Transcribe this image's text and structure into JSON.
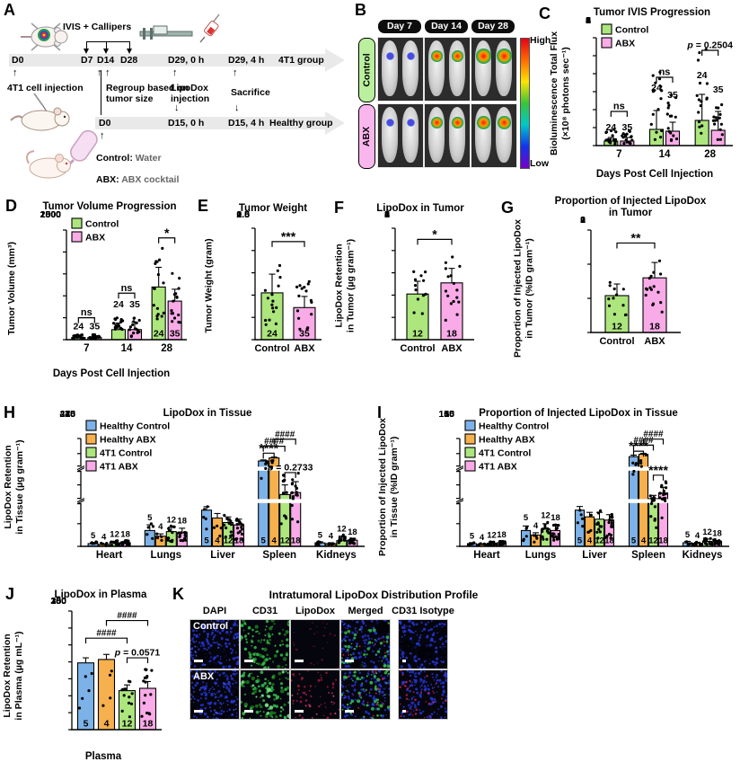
{
  "glyphs": {
    "up": "↑",
    "down": "↓"
  },
  "colors": {
    "green": "#ace67d",
    "pink": "#f8abe7",
    "blue": "#7db2e8",
    "orange": "#f6b04e"
  },
  "panelA": {
    "label": "A",
    "ivis_callipers": "IVIS + Callipers",
    "row1": {
      "d0": "D0",
      "d7": "D7",
      "d14": "D14",
      "d28": "D28",
      "t0": "D29, 0 h",
      "t4": "D29, 4 h",
      "group": "4T1 group"
    },
    "cell_injection": "4T1 cell injection",
    "regroup": "Regroup based on\ntumor size",
    "lipodox": "LipoDox\ninjection",
    "sacrifice": "Sacrifice",
    "row2": {
      "d0": "D0",
      "t0": "D15, 0 h",
      "t4": "D15, 4 h",
      "group": "Healthy group"
    },
    "control_key": "Control:",
    "control_val": " Water",
    "abx_key": "ABX:",
    "abx_val": " ABX cocktail"
  },
  "panelB": {
    "label": "B",
    "days": [
      "Day 7",
      "Day 14",
      "Day 28"
    ],
    "rows": [
      "Control",
      "ABX"
    ],
    "row_colors": [
      "#baef9d",
      "#f9b6ec"
    ],
    "scale_high": "High",
    "scale_low": "Low"
  },
  "panelK": {
    "label": "K",
    "title": "Intratumoral LipoDox Distribution Profile",
    "cols": [
      "DAPI",
      "CD31",
      "LipoDox",
      "Merged",
      "CD31 Isotype"
    ],
    "rows": [
      "Control",
      "ABX"
    ]
  },
  "charts": {
    "C": {
      "label": "C",
      "type": "bar",
      "title": "Tumor IVIS Progression",
      "ylabel": "Bioluminescence Total Flux\n(×10⁸ photons sec⁻¹)",
      "xlabel": "Days Post Cell Injection",
      "categories": [
        "7",
        "14",
        "28"
      ],
      "ymax": 6,
      "yticks": [
        "0",
        "1",
        "2",
        "3",
        "4",
        "5",
        "6"
      ],
      "legend": true,
      "series": [
        {
          "name": "Control",
          "color": "green",
          "values": [
            0.25,
            0.9,
            1.4
          ],
          "err": [
            0.45,
            1.95,
            2.85
          ],
          "dot_hi": [
            0.95,
            4.4,
            5.9
          ],
          "n": "24"
        },
        {
          "name": "ABX",
          "color": "pink",
          "values": [
            0.25,
            0.8,
            0.85
          ],
          "err": [
            0.45,
            1.3,
            1.9
          ],
          "dot_hi": [
            0.9,
            2.8,
            2.3
          ],
          "n": "35"
        }
      ],
      "n_y": [
        [
          1.0,
          3.2,
          3.9
        ],
        [
          1.0,
          2.8,
          3.1
        ]
      ],
      "sig": [
        {
          "cat": 0,
          "s1": 0,
          "s2": 1,
          "label": "ns",
          "y": 1.9
        },
        {
          "cat": 1,
          "s1": 0,
          "s2": 1,
          "label": "ns",
          "y": 3.8
        },
        {
          "cat": 2,
          "s1": 0,
          "s2": 1,
          "label": "p = 0.2504",
          "y": 5.3
        }
      ]
    },
    "D": {
      "label": "D",
      "type": "bar",
      "title": "Tumor Volume Progression",
      "ylabel": "Tumor Volume (mm³)",
      "xlabel": "Days Post Cell Injection",
      "categories": [
        "7",
        "14",
        "28"
      ],
      "ymax": 2500,
      "yticks": [
        "0",
        "500",
        "1000",
        "1500",
        "2000",
        "2500"
      ],
      "legend": true,
      "series": [
        {
          "name": "Control",
          "color": "green",
          "values": [
            50,
            230,
            1200
          ],
          "err": [
            90,
            380,
            1650
          ],
          "dot_hi": [
            120,
            500,
            2150
          ],
          "n": "24"
        },
        {
          "name": "ABX",
          "color": "pink",
          "values": [
            50,
            230,
            880
          ],
          "err": [
            90,
            400,
            1150
          ],
          "dot_hi": [
            120,
            520,
            1520
          ],
          "n": "35"
        }
      ],
      "n_y": [
        [
          300,
          800,
          0
        ],
        [
          300,
          800,
          0
        ]
      ],
      "n_inside_cats": [
        2
      ],
      "sig": [
        {
          "cat": 0,
          "s1": 0,
          "s2": 1,
          "label": "ns",
          "y": 500
        },
        {
          "cat": 1,
          "s1": 0,
          "s2": 1,
          "label": "ns",
          "y": 1060
        },
        {
          "cat": 2,
          "s1": 0,
          "s2": 1,
          "label": "*",
          "y": 2320
        }
      ]
    },
    "E": {
      "label": "E",
      "type": "bar",
      "title": "Tumor Weight",
      "ylabel": "Tumor Weight (gram)",
      "categories": [
        ""
      ],
      "xlabels": [
        "Control",
        "ABX"
      ],
      "ymax": 2.5,
      "yticks": [
        "0.0",
        "0.5",
        "1.0",
        "1.5",
        "2.0",
        "2.5"
      ],
      "series": [
        {
          "name": "Control",
          "color": "green",
          "values": [
            1.05
          ],
          "err": [
            1.47
          ],
          "dot_hi": [
            1.85
          ],
          "n": "24"
        },
        {
          "name": "ABX",
          "color": "pink",
          "values": [
            0.72
          ],
          "err": [
            0.97
          ],
          "dot_hi": [
            1.45
          ],
          "n": "35"
        }
      ],
      "n_inside_cats": [
        0
      ],
      "sig": [
        {
          "cat": 0,
          "s1": 0,
          "s2": 1,
          "label": "***",
          "y": 2.2
        }
      ]
    },
    "F": {
      "label": "F",
      "type": "bar",
      "title": "LipoDox in Tumor",
      "ylabel": "LipoDox Retention\nin Tumor (µg gram⁻¹)",
      "categories": [
        ""
      ],
      "xlabels": [
        "Control",
        "ABX"
      ],
      "ymax": 5,
      "yticks": [
        "0",
        "1",
        "2",
        "3",
        "4",
        "5"
      ],
      "series": [
        {
          "name": "Control",
          "color": "green",
          "values": [
            2.05
          ],
          "err": [
            2.62
          ],
          "dot_hi": [
            3.05
          ],
          "n": "12"
        },
        {
          "name": "ABX",
          "color": "pink",
          "values": [
            2.55
          ],
          "err": [
            3.2
          ],
          "dot_hi": [
            3.75
          ],
          "n": "18"
        }
      ],
      "n_inside_cats": [
        0
      ],
      "sig": [
        {
          "cat": 0,
          "s1": 0,
          "s2": 1,
          "label": "*",
          "y": 4.5
        }
      ]
    },
    "G": {
      "label": "G",
      "type": "bar",
      "title": "Proportion of Injected LipoDox\nin Tumor",
      "ylabel": "Proportion of Injected LipoDox\nin Tumor (%ID gram⁻¹)",
      "categories": [
        ""
      ],
      "xlabels": [
        "Control",
        "ABX"
      ],
      "ymax": 3,
      "yticks": [
        "0",
        "1",
        "2",
        "3"
      ],
      "series": [
        {
          "name": "Control",
          "color": "green",
          "values": [
            1.08
          ],
          "err": [
            1.42
          ],
          "dot_hi": [
            1.55
          ],
          "n": "12"
        },
        {
          "name": "ABX",
          "color": "pink",
          "values": [
            1.6
          ],
          "err": [
            2.05
          ],
          "dot_hi": [
            2.3
          ],
          "n": "18"
        }
      ],
      "n_inside_cats": [
        0
      ],
      "sig": [
        {
          "cat": 0,
          "s1": 0,
          "s2": 1,
          "label": "**",
          "y": 2.62
        }
      ]
    },
    "H": {
      "label": "H",
      "type": "bar",
      "title": "LipoDox in Tissue",
      "ylabel": "LipoDox Retention\nin Tissue (µg gram⁻¹)",
      "categories": [
        "Heart",
        "Lungs",
        "Liver",
        "Spleen",
        "Kidneys"
      ],
      "segments": [
        {
          "lo": 0,
          "hi": 20,
          "frac": 0.42,
          "ticks": [
            "0",
            "10",
            "20"
          ]
        },
        {
          "lo": 20,
          "hi": 70,
          "frac": 0.3,
          "ticks": [
            "20",
            "45",
            "70"
          ]
        },
        {
          "lo": 70,
          "hi": 420,
          "frac": 0.28,
          "ticks": [
            "70",
            "245",
            "420"
          ]
        }
      ],
      "legend": true,
      "series": [
        {
          "name": "Healthy Control",
          "color": "blue",
          "values": [
            1.2,
            7,
            16,
            160,
            1.5
          ],
          "err": [
            1.6,
            9.5,
            17.5,
            172,
            2
          ],
          "dot_hi": [
            2,
            10,
            18,
            178,
            2.2
          ],
          "n": "5"
        },
        {
          "name": "Healthy ABX",
          "color": "orange",
          "values": [
            0.8,
            4.5,
            12.5,
            195,
            1.2
          ],
          "err": [
            1.1,
            5.5,
            14.5,
            205,
            1.6
          ],
          "dot_hi": [
            1.4,
            6,
            15,
            210,
            1.8
          ],
          "n": "4"
        },
        {
          "name": "4T1 Control",
          "color": "green",
          "values": [
            1.6,
            6.5,
            10.5,
            30,
            2.5
          ],
          "err": [
            2.2,
            8.5,
            13,
            45,
            4.5
          ],
          "dot_hi": [
            2.5,
            9,
            14,
            60,
            5
          ],
          "n": "12"
        },
        {
          "name": "4T1 ABX",
          "color": "pink",
          "values": [
            1.6,
            6,
            9.5,
            33,
            2.7
          ],
          "err": [
            2.2,
            8,
            12,
            50,
            3.2
          ],
          "dot_hi": [
            2.6,
            8.5,
            13,
            65,
            3.5
          ],
          "n": "18"
        }
      ],
      "n_inside_cats": [
        2,
        3
      ],
      "sig": [
        {
          "cat": 3,
          "s1": 0,
          "s2": 1,
          "label": "****",
          "y": 250
        },
        {
          "cat": 3,
          "s1": 0,
          "s2": 2,
          "label": "####",
          "y": 330
        },
        {
          "cat": 3,
          "s1": 1,
          "s2": 3,
          "label": "####",
          "y": 412
        },
        {
          "cat": 3,
          "s1": 2,
          "s2": 3,
          "label": "p = 0.2733",
          "y": 64
        }
      ]
    },
    "I": {
      "label": "I",
      "type": "bar",
      "title": "Proportion of Injected LipoDox in Tissue",
      "ylabel": "Proportion of Injected LipoDox\nin Tissue (%ID gram⁻¹)",
      "categories": [
        "Heart",
        "Lungs",
        "Liver",
        "Spleen",
        "Kidneys"
      ],
      "segments": [
        {
          "lo": 0,
          "hi": 10,
          "frac": 0.42,
          "ticks": [
            "0",
            "5",
            "10"
          ]
        },
        {
          "lo": 10,
          "hi": 50,
          "frac": 0.3,
          "ticks": [
            "10",
            "30",
            "50"
          ]
        },
        {
          "lo": 50,
          "hi": 150,
          "frac": 0.28,
          "ticks": [
            "50",
            "100",
            "150"
          ]
        }
      ],
      "legend": true,
      "series": [
        {
          "name": "Healthy Control",
          "color": "blue",
          "values": [
            0.6,
            3.5,
            8,
            90,
            0.8
          ],
          "err": [
            0.8,
            4.5,
            8.8,
            95,
            1.1
          ],
          "dot_hi": [
            0.9,
            5,
            9,
            97,
            1.2
          ],
          "n": "5"
        },
        {
          "name": "Healthy ABX",
          "color": "orange",
          "values": [
            0.4,
            2.5,
            6.5,
            98,
            0.7
          ],
          "err": [
            0.55,
            3,
            7.5,
            101,
            0.9
          ],
          "dot_hi": [
            0.6,
            3.2,
            8,
            103,
            1
          ],
          "n": "4"
        },
        {
          "name": "4T1 Control",
          "color": "green",
          "values": [
            0.7,
            3.8,
            6,
            13,
            1.1
          ],
          "err": [
            1,
            5,
            7.5,
            17,
            1.6
          ],
          "dot_hi": [
            1.1,
            5.5,
            8,
            26,
            1.8
          ],
          "n": "12"
        },
        {
          "name": "4T1 ABX",
          "color": "pink",
          "values": [
            0.8,
            3.5,
            5.8,
            20,
            1
          ],
          "err": [
            1.1,
            4.6,
            7,
            27,
            1.3
          ],
          "dot_hi": [
            1.2,
            5,
            7.5,
            40,
            1.5
          ],
          "n": "18"
        }
      ],
      "n_inside_cats": [
        2,
        3
      ],
      "sig": [
        {
          "cat": 3,
          "s1": 0,
          "s2": 1,
          "label": "****",
          "y": 108
        },
        {
          "cat": 3,
          "s1": 0,
          "s2": 2,
          "label": "####",
          "y": 128
        },
        {
          "cat": 3,
          "s1": 1,
          "s2": 3,
          "label": "####",
          "y": 148
        },
        {
          "cat": 3,
          "s1": 2,
          "s2": 3,
          "label": "****",
          "y": 42
        }
      ]
    },
    "J": {
      "label": "J",
      "type": "bar",
      "title": "LipoDox in Plasma",
      "ylabel": "LipoDox Retention\nin Plasma (µg mL⁻¹)",
      "xlabel": "Plasma",
      "categories": [
        ""
      ],
      "ymax": 350,
      "yticks": [
        "0",
        "50",
        "100",
        "150",
        "200",
        "250",
        "300",
        "350"
      ],
      "series": [
        {
          "name": "Healthy Control",
          "color": "blue",
          "values": [
            197
          ],
          "err": [
            212
          ],
          "dot_hi": [
            218
          ],
          "n": "5"
        },
        {
          "name": "Healthy ABX",
          "color": "orange",
          "values": [
            207
          ],
          "err": [
            222
          ],
          "dot_hi": [
            228
          ],
          "n": "4"
        },
        {
          "name": "4T1 Control",
          "color": "green",
          "values": [
            115
          ],
          "err": [
            132
          ],
          "dot_hi": [
            158
          ],
          "n": "12"
        },
        {
          "name": "4T1 ABX",
          "color": "pink",
          "values": [
            122
          ],
          "err": [
            142
          ],
          "dot_hi": [
            178
          ],
          "n": "18"
        }
      ],
      "n_inside_cats": [
        0
      ],
      "sig": [
        {
          "cat": 0,
          "s1": 0,
          "s2": 2,
          "label": "####",
          "y": 270
        },
        {
          "cat": 0,
          "s1": 1,
          "s2": 3,
          "label": "####",
          "y": 322
        },
        {
          "cat": 0,
          "s1": 2,
          "s2": 3,
          "label": "p = 0.0571",
          "y": 212
        }
      ]
    }
  }
}
